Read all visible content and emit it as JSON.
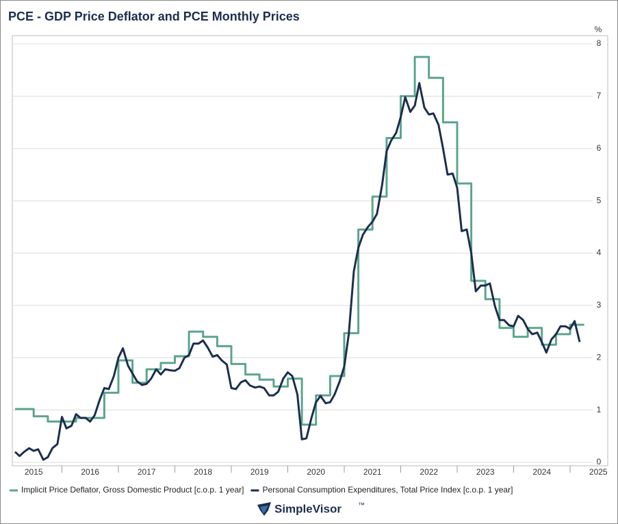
{
  "chart_data": {
    "type": "line",
    "title": "PCE - GDP Price Deflator and PCE Monthly Prices",
    "y_unit": "%",
    "brand": "SimpleVisor",
    "brand_mark": "™",
    "xlim": [
      2015.17,
      2025.4
    ],
    "ylim": [
      0,
      8
    ],
    "yticks": [
      0,
      1,
      2,
      3,
      4,
      5,
      6,
      7,
      8
    ],
    "xticks": [
      {
        "value": 2015.5,
        "label": "2015"
      },
      {
        "value": 2016.5,
        "label": "2016"
      },
      {
        "value": 2017.5,
        "label": "2017"
      },
      {
        "value": 2018.5,
        "label": "2018"
      },
      {
        "value": 2019.5,
        "label": "2019"
      },
      {
        "value": 2020.5,
        "label": "2020"
      },
      {
        "value": 2021.5,
        "label": "2021"
      },
      {
        "value": 2022.5,
        "label": "2022"
      },
      {
        "value": 2023.5,
        "label": "2023"
      },
      {
        "value": 2024.5,
        "label": "2024"
      },
      {
        "value": 2025.5,
        "label": "2025"
      }
    ],
    "xminorticks": [
      2016,
      2017,
      2018,
      2019,
      2020,
      2021,
      2022,
      2023,
      2024,
      2025
    ],
    "grid": true,
    "legend": "bottom",
    "series": [
      {
        "name": "Implicit Price Deflator, Gross Domestic Product [c.o.p. 1 year]",
        "color": "#5ba58c",
        "step": true,
        "x": [
          2015.17,
          2015.5,
          2015.75,
          2016,
          2016.25,
          2016.5,
          2016.75,
          2017,
          2017.25,
          2017.5,
          2017.75,
          2018,
          2018.25,
          2018.5,
          2018.75,
          2019,
          2019.25,
          2019.5,
          2019.75,
          2020,
          2020.25,
          2020.5,
          2020.75,
          2021,
          2021.25,
          2021.5,
          2021.75,
          2022,
          2022.25,
          2022.5,
          2022.75,
          2023,
          2023.25,
          2023.5,
          2023.75,
          2024,
          2024.25,
          2024.5,
          2024.75,
          2025
        ],
        "values": [
          1.02,
          0.88,
          0.78,
          0.78,
          0.85,
          0.85,
          1.33,
          1.95,
          1.52,
          1.78,
          1.9,
          2.03,
          2.5,
          2.4,
          2.22,
          1.88,
          1.68,
          1.58,
          1.45,
          1.6,
          0.72,
          1.28,
          1.65,
          2.47,
          4.45,
          5.08,
          6.2,
          7.0,
          7.75,
          7.35,
          6.5,
          5.33,
          3.47,
          3.12,
          2.57,
          2.4,
          2.57,
          2.25,
          2.45,
          2.63
        ]
      },
      {
        "name": "Personal Consumption Expenditures, Total Price Index [c.o.p. 1 year]",
        "color": "#1c2e4e",
        "step": false,
        "x": [
          2015.17,
          2015.25,
          2015.33,
          2015.42,
          2015.5,
          2015.58,
          2015.67,
          2015.75,
          2015.83,
          2015.92,
          2016,
          2016.08,
          2016.17,
          2016.25,
          2016.33,
          2016.42,
          2016.5,
          2016.58,
          2016.67,
          2016.75,
          2016.83,
          2016.92,
          2017,
          2017.08,
          2017.17,
          2017.25,
          2017.33,
          2017.42,
          2017.5,
          2017.58,
          2017.67,
          2017.75,
          2017.83,
          2017.92,
          2018,
          2018.08,
          2018.17,
          2018.25,
          2018.33,
          2018.42,
          2018.5,
          2018.58,
          2018.67,
          2018.75,
          2018.83,
          2018.92,
          2019,
          2019.08,
          2019.17,
          2019.25,
          2019.33,
          2019.42,
          2019.5,
          2019.58,
          2019.67,
          2019.75,
          2019.83,
          2019.92,
          2020,
          2020.08,
          2020.17,
          2020.25,
          2020.33,
          2020.42,
          2020.5,
          2020.58,
          2020.67,
          2020.75,
          2020.83,
          2020.92,
          2021,
          2021.08,
          2021.17,
          2021.25,
          2021.33,
          2021.42,
          2021.5,
          2021.58,
          2021.67,
          2021.75,
          2021.83,
          2021.92,
          2022,
          2022.08,
          2022.17,
          2022.25,
          2022.33,
          2022.42,
          2022.5,
          2022.58,
          2022.67,
          2022.75,
          2022.83,
          2022.92,
          2023,
          2023.08,
          2023.17,
          2023.25,
          2023.33,
          2023.42,
          2023.5,
          2023.58,
          2023.67,
          2023.75,
          2023.83,
          2023.92,
          2024,
          2024.08,
          2024.17,
          2024.25,
          2024.33,
          2024.42,
          2024.5,
          2024.58,
          2024.67,
          2024.75,
          2024.83,
          2024.92,
          2025,
          2025.08,
          2025.17
        ],
        "values": [
          0.2,
          0.12,
          0.2,
          0.27,
          0.22,
          0.25,
          0.05,
          0.1,
          0.27,
          0.35,
          0.87,
          0.65,
          0.7,
          0.92,
          0.85,
          0.85,
          0.78,
          0.9,
          1.2,
          1.42,
          1.4,
          1.65,
          2.0,
          2.18,
          1.85,
          1.7,
          1.55,
          1.48,
          1.5,
          1.6,
          1.78,
          1.68,
          1.78,
          1.76,
          1.75,
          1.8,
          2.0,
          2.05,
          2.27,
          2.27,
          2.33,
          2.2,
          2.02,
          2.05,
          1.95,
          1.87,
          1.42,
          1.4,
          1.53,
          1.57,
          1.47,
          1.43,
          1.45,
          1.42,
          1.28,
          1.28,
          1.35,
          1.6,
          1.72,
          1.65,
          1.3,
          0.44,
          0.46,
          0.85,
          1.15,
          1.27,
          1.13,
          1.15,
          1.3,
          1.55,
          1.83,
          2.45,
          3.65,
          4.1,
          4.35,
          4.5,
          4.6,
          4.75,
          5.3,
          5.95,
          6.15,
          6.3,
          6.6,
          6.98,
          6.7,
          6.82,
          7.25,
          6.78,
          6.65,
          6.67,
          6.45,
          6.0,
          5.5,
          5.52,
          5.25,
          4.42,
          4.45,
          4.0,
          3.27,
          3.38,
          3.38,
          3.42,
          2.98,
          2.72,
          2.72,
          2.62,
          2.6,
          2.8,
          2.72,
          2.55,
          2.45,
          2.48,
          2.3,
          2.1,
          2.35,
          2.45,
          2.6,
          2.6,
          2.55,
          2.7,
          2.3
        ]
      }
    ]
  }
}
